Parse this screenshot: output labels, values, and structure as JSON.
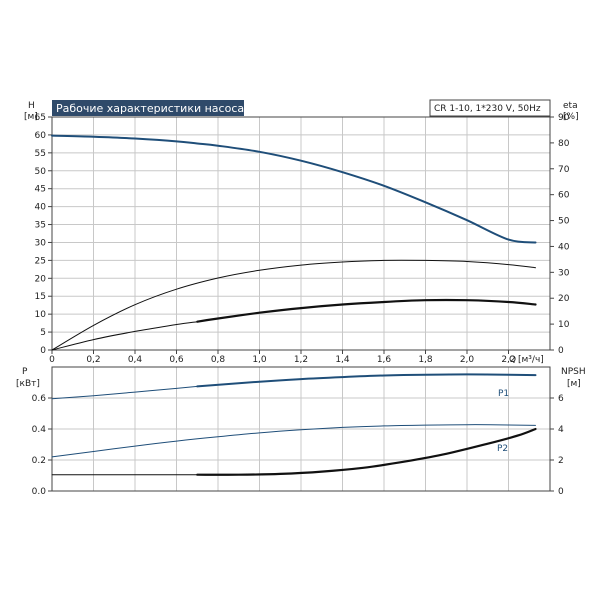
{
  "chart_title": "Рабочие характеристики насоса",
  "pump_label": "CR 1-10, 1*230 V, 50Hz",
  "colors": {
    "title_bg": "#2f4a6a",
    "grid": "#c8c8c8",
    "frame": "#444444",
    "curve_blue": "#1f4e79",
    "curve_black": "#111111"
  },
  "chart_data": [
    {
      "type": "line",
      "xlabel": "Q",
      "xunit": "[м³/ч]",
      "xlim": [
        0,
        2.4
      ],
      "x_ticks": [
        "0",
        "0,2",
        "0,4",
        "0,6",
        "0,8",
        "1,0",
        "1,2",
        "1,4",
        "1,6",
        "1,8",
        "2,0",
        "2,2"
      ],
      "y_left": {
        "label": "H",
        "unit": "[м]",
        "range": [
          0,
          65
        ],
        "ticks": [
          "0",
          "5",
          "10",
          "15",
          "20",
          "25",
          "30",
          "35",
          "40",
          "45",
          "50",
          "55",
          "60",
          "65"
        ]
      },
      "y_right": {
        "label": "eta",
        "unit": "[%]",
        "range": [
          0,
          90
        ],
        "ticks": [
          "0",
          "10",
          "20",
          "30",
          "40",
          "50",
          "60",
          "70",
          "80",
          "90"
        ]
      },
      "grid": true,
      "series": [
        {
          "axis": "left",
          "color": "#1f4e79",
          "width": 2,
          "x": [
            0,
            0.2,
            0.4,
            0.6,
            0.7,
            0.8,
            1.0,
            1.2,
            1.4,
            1.6,
            1.8,
            2.0,
            2.2,
            2.33
          ],
          "y": [
            59.8,
            59.5,
            59.0,
            58.2,
            57.6,
            57.0,
            55.3,
            52.8,
            49.6,
            45.8,
            41.2,
            36.2,
            30.8,
            30.0
          ]
        },
        {
          "axis": "right",
          "color": "#111111",
          "width": 1,
          "x": [
            0,
            0.2,
            0.4,
            0.6,
            0.8,
            1.0,
            1.2,
            1.4,
            1.6,
            1.8,
            2.0,
            2.2,
            2.33
          ],
          "y": [
            0,
            9.5,
            17.5,
            23.5,
            27.8,
            30.8,
            32.8,
            34.0,
            34.6,
            34.6,
            34.2,
            33.0,
            31.8
          ]
        },
        {
          "axis": "left",
          "color": "#111111",
          "width": 1,
          "x": [
            0,
            0.2,
            0.4,
            0.6,
            0.7
          ],
          "y": [
            0,
            2.9,
            5.2,
            7.1,
            7.9
          ]
        },
        {
          "axis": "left",
          "color": "#111111",
          "width": 2.2,
          "x": [
            0.7,
            0.8,
            1.0,
            1.2,
            1.4,
            1.6,
            1.8,
            2.0,
            2.2,
            2.33
          ],
          "y": [
            7.9,
            8.8,
            10.4,
            11.7,
            12.7,
            13.4,
            13.9,
            13.9,
            13.4,
            12.7
          ]
        }
      ]
    },
    {
      "type": "line",
      "xlim": [
        0,
        2.4
      ],
      "y_left": {
        "label": "P",
        "unit": "[кВт]",
        "range": [
          0,
          0.8
        ],
        "ticks": [
          "0.0",
          "0.2",
          "0.4",
          "0.6"
        ]
      },
      "y_right": {
        "label": "NPSH",
        "unit": "[м]",
        "range": [
          0,
          8
        ],
        "ticks": [
          "0",
          "2",
          "4",
          "6"
        ]
      },
      "grid": true,
      "series": [
        {
          "name": "P1",
          "axis": "left",
          "color": "#1f4e79",
          "width": 1,
          "x": [
            0,
            0.2,
            0.4,
            0.6,
            0.7
          ],
          "y": [
            0.595,
            0.615,
            0.638,
            0.662,
            0.675
          ]
        },
        {
          "axis": "left",
          "color": "#1f4e79",
          "width": 2,
          "x": [
            0.7,
            1.0,
            1.2,
            1.4,
            1.6,
            1.8,
            2.0,
            2.2,
            2.33
          ],
          "y": [
            0.675,
            0.705,
            0.722,
            0.735,
            0.745,
            0.75,
            0.752,
            0.75,
            0.748
          ]
        },
        {
          "name": "P2",
          "axis": "left",
          "color": "#1f4e79",
          "width": 1,
          "x": [
            0,
            0.2,
            0.4,
            0.6,
            0.8,
            1.0,
            1.2,
            1.4,
            1.6,
            1.8,
            2.0,
            2.2,
            2.33
          ],
          "y": [
            0.22,
            0.255,
            0.29,
            0.322,
            0.35,
            0.375,
            0.395,
            0.41,
            0.42,
            0.425,
            0.428,
            0.426,
            0.423
          ]
        },
        {
          "axis": "right",
          "color": "#111111",
          "width": 1,
          "x": [
            0,
            0.7
          ],
          "y": [
            1.05,
            1.05
          ]
        },
        {
          "axis": "right",
          "color": "#111111",
          "width": 2.2,
          "x": [
            0.7,
            0.9,
            1.1,
            1.3,
            1.5,
            1.7,
            1.9,
            2.1,
            2.25,
            2.33
          ],
          "y": [
            1.05,
            1.05,
            1.1,
            1.25,
            1.5,
            1.9,
            2.4,
            3.05,
            3.6,
            4.0
          ]
        }
      ]
    }
  ]
}
